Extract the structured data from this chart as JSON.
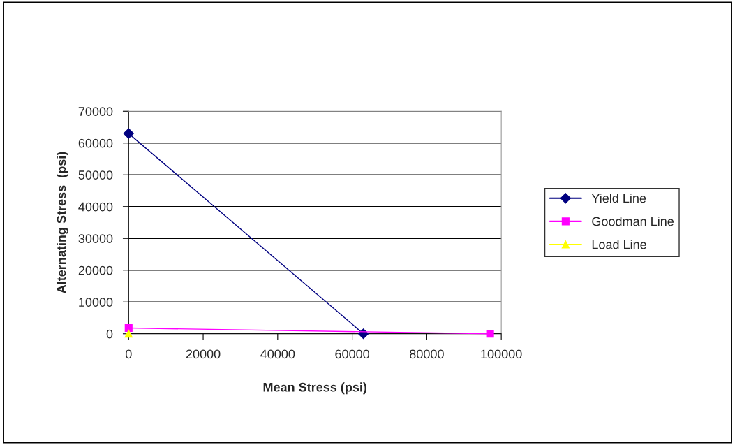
{
  "chart_data": {
    "type": "line",
    "xlabel": "Mean Stress (psi)",
    "ylabel": "Alternating Stress  (psi)",
    "xlim": [
      0,
      100000
    ],
    "xticks": [
      0,
      20000,
      40000,
      60000,
      80000,
      100000
    ],
    "ylim": [
      0,
      70000
    ],
    "yticks": [
      0,
      10000,
      20000,
      30000,
      40000,
      50000,
      60000,
      70000
    ],
    "grid": "y",
    "legend": "right",
    "series": [
      {
        "name": "Yield Line",
        "color": "#000080",
        "marker": "diamond",
        "x": [
          0,
          63000
        ],
        "values": [
          63000,
          0
        ]
      },
      {
        "name": "Goodman Line",
        "color": "#ff00ff",
        "marker": "square",
        "x": [
          0,
          97000
        ],
        "values": [
          1800,
          0
        ]
      },
      {
        "name": "Load Line",
        "color": "#ffff00",
        "marker": "triangle",
        "x": [
          0
        ],
        "values": [
          0
        ]
      }
    ]
  }
}
